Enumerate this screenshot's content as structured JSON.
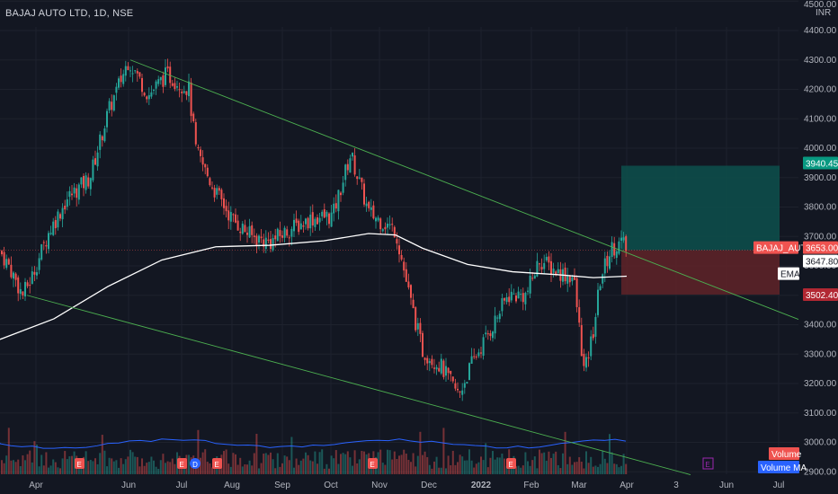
{
  "header": {
    "symbol_line": "BAJAJ AUTO LTD, 1D, NSE"
  },
  "price_scale": {
    "currency": "INR",
    "ticks": [
      "4500.00",
      "4400.00",
      "4300.00",
      "4200.00",
      "4100.00",
      "4000.00",
      "3900.00",
      "3800.00",
      "3700.00",
      "3600.00",
      "3500.00",
      "3400.00",
      "3300.00",
      "3200.00",
      "3100.00",
      "3000.00",
      "2900.00"
    ]
  },
  "time_scale": {
    "ticks": [
      "Apr",
      "Jun",
      "Jul",
      "Aug",
      "Sep",
      "Oct",
      "Nov",
      "Dec",
      "2022",
      "Feb",
      "Mar",
      "Apr",
      "3",
      "Jun",
      "Jul"
    ]
  },
  "tags": {
    "target": "3940.45",
    "last_name": "BAJAJ_AUTO",
    "last_price": "3653.00",
    "ema_value": "3647.80",
    "ema_label": "EMA",
    "stop": "3502.40",
    "volume_label": "Volume",
    "volume_ma_label": "Volume MA"
  },
  "events": [
    "E",
    "E",
    "D",
    "E",
    "E",
    "E",
    "E"
  ],
  "colors": {
    "background": "#131722",
    "up": "#26a69a",
    "down": "#ef5350",
    "ema": "#ffffff",
    "trendline": "#4caf50",
    "volume_ma": "#2962ff",
    "target_zone": "#0d4c4a",
    "stop_zone": "#5c2228",
    "event_earnings": "#ef5350",
    "event_dividend": "#2962ff",
    "event_future": "#9c27b0"
  },
  "chart_data": {
    "type": "candlestick",
    "title": "BAJAJ AUTO LTD, 1D, NSE",
    "y_axis": {
      "min": 2890,
      "max": 4520,
      "unit": "INR"
    },
    "approx_path": [
      {
        "date": "Mar 2021",
        "price": 3650
      },
      {
        "date": "Apr 2021",
        "price": 3600
      },
      {
        "date": "early Apr 2021",
        "price": 3500
      },
      {
        "date": "May 2021",
        "price": 3900
      },
      {
        "date": "Jun 2021",
        "price": 4290
      },
      {
        "date": "Jul 2021",
        "price": 4200
      },
      {
        "date": "Aug 2021",
        "price": 3800
      },
      {
        "date": "Sep 2021",
        "price": 3730
      },
      {
        "date": "Oct 2021",
        "price": 3980
      },
      {
        "date": "Nov 2021",
        "price": 3720
      },
      {
        "date": "Dec 2021",
        "price": 3200
      },
      {
        "date": "Jan 2022",
        "price": 3350
      },
      {
        "date": "Feb 2022",
        "price": 3620
      },
      {
        "date": "Mar 2022",
        "price": 3250
      },
      {
        "date": "Apr 2022",
        "price": 3653
      }
    ],
    "indicators": {
      "ema_last": 3647.8,
      "last_price": 3653.0,
      "target": 3940.45,
      "stop": 3502.4
    }
  }
}
